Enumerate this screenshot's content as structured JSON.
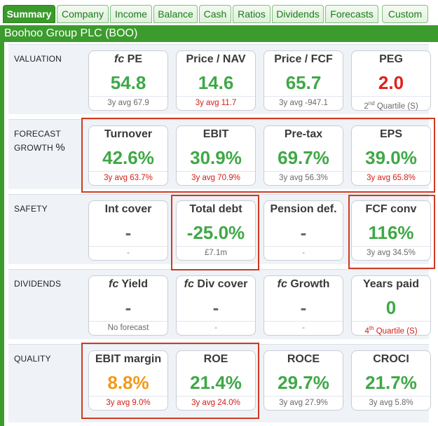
{
  "tabs": [
    "Summary",
    "Company",
    "Income",
    "Balance",
    "Cash",
    "Ratios",
    "Dividends",
    "Forecasts",
    "Custom"
  ],
  "title": "Boohoo Group PLC (BOO)",
  "colors": {
    "accent": "#3c9b2d",
    "good": "#3fa847",
    "bad": "#e0201a",
    "warning": "#f29a1a",
    "highlight": "#cf3a1e"
  },
  "rows": [
    {
      "label": "VALUATION",
      "cards": [
        {
          "prefix": "fc",
          "title": "PE",
          "value": "54.8",
          "footer": "3y avg 67.9",
          "footer_sup": "",
          "footer_rest": ""
        },
        {
          "prefix": "",
          "title": "Price / NAV",
          "value": "14.6",
          "footer": "3y avg 11.7",
          "footer_sup": "",
          "footer_rest": ""
        },
        {
          "prefix": "",
          "title": "Price / FCF",
          "value": "65.7",
          "footer": "3y avg -947.1",
          "footer_sup": "",
          "footer_rest": ""
        },
        {
          "prefix": "",
          "title": "PEG",
          "value": "2.0",
          "footer": "2",
          "footer_sup": "nd",
          "footer_rest": " Quartile (S)"
        }
      ]
    },
    {
      "label": "FORECAST",
      "label2": "GROWTH",
      "label2_suffix": "%",
      "cards": [
        {
          "prefix": "",
          "title": "Turnover",
          "value": "42.6%",
          "footer": "3y avg 63.7%",
          "footer_sup": "",
          "footer_rest": ""
        },
        {
          "prefix": "",
          "title": "EBIT",
          "value": "30.9%",
          "footer": "3y avg 70.9%",
          "footer_sup": "",
          "footer_rest": ""
        },
        {
          "prefix": "",
          "title": "Pre-tax",
          "value": "69.7%",
          "footer": "3y avg 56.3%",
          "footer_sup": "",
          "footer_rest": ""
        },
        {
          "prefix": "",
          "title": "EPS",
          "value": "39.0%",
          "footer": "3y avg 65.8%",
          "footer_sup": "",
          "footer_rest": ""
        }
      ]
    },
    {
      "label": "SAFETY",
      "cards": [
        {
          "prefix": "",
          "title": "Int cover",
          "value": "-",
          "footer": "-",
          "footer_sup": "",
          "footer_rest": ""
        },
        {
          "prefix": "",
          "title": "Total debt",
          "value": "-25.0%",
          "footer": "£7.1m",
          "footer_sup": "",
          "footer_rest": ""
        },
        {
          "prefix": "",
          "title": "Pension def.",
          "value": "-",
          "footer": "-",
          "footer_sup": "",
          "footer_rest": ""
        },
        {
          "prefix": "",
          "title": "FCF conv",
          "value": "116%",
          "footer": "3y avg 34.5%",
          "footer_sup": "",
          "footer_rest": ""
        }
      ]
    },
    {
      "label": "DIVIDENDS",
      "cards": [
        {
          "prefix": "fc",
          "title": "Yield",
          "value": "-",
          "footer": "No forecast",
          "footer_sup": "",
          "footer_rest": ""
        },
        {
          "prefix": "fc",
          "title": "Div cover",
          "value": "-",
          "footer": "-",
          "footer_sup": "",
          "footer_rest": ""
        },
        {
          "prefix": "fc",
          "title": "Growth",
          "value": "-",
          "footer": "-",
          "footer_sup": "",
          "footer_rest": ""
        },
        {
          "prefix": "",
          "title": "Years paid",
          "value": "0",
          "footer": "4",
          "footer_sup": "th",
          "footer_rest": " Quartile (S)"
        }
      ]
    },
    {
      "label": "QUALITY",
      "cards": [
        {
          "prefix": "",
          "title": "EBIT margin",
          "value": "8.8%",
          "footer": "3y avg 9.0%",
          "footer_sup": "",
          "footer_rest": ""
        },
        {
          "prefix": "",
          "title": "ROE",
          "value": "21.4%",
          "footer": "3y avg 24.0%",
          "footer_sup": "",
          "footer_rest": ""
        },
        {
          "prefix": "",
          "title": "ROCE",
          "value": "29.7%",
          "footer": "3y avg 27.9%",
          "footer_sup": "",
          "footer_rest": ""
        },
        {
          "prefix": "",
          "title": "CROCI",
          "value": "21.7%",
          "footer": "3y avg 5.8%",
          "footer_sup": "",
          "footer_rest": ""
        }
      ]
    }
  ]
}
